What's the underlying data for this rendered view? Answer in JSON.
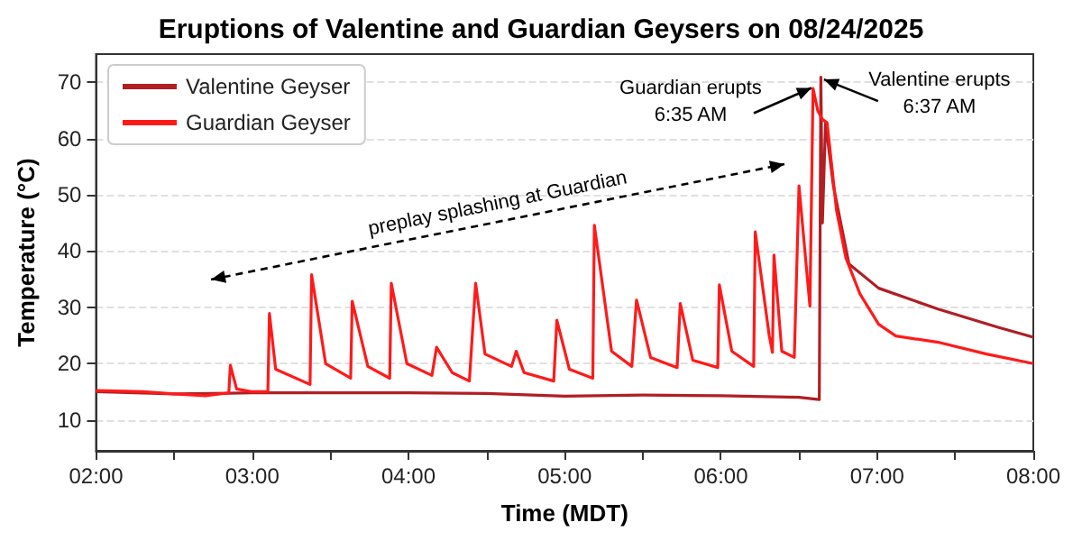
{
  "chart_data": {
    "type": "line",
    "title": "Eruptions of Valentine and Guardian Geysers on 08/24/2025",
    "xlabel": "Time (MDT)",
    "ylabel": "Temperature (°C)",
    "xlim": [
      2,
      8
    ],
    "xticks": [
      {
        "value": 2,
        "label": "02:00"
      },
      {
        "value": 2.5,
        "label": null
      },
      {
        "value": 3,
        "label": "03:00"
      },
      {
        "value": 3.5,
        "label": null
      },
      {
        "value": 4,
        "label": "04:00"
      },
      {
        "value": 4.5,
        "label": null
      },
      {
        "value": 5,
        "label": "05:00"
      },
      {
        "value": 5.5,
        "label": null
      },
      {
        "value": 6,
        "label": "06:00"
      },
      {
        "value": 6.5,
        "label": null
      },
      {
        "value": 7,
        "label": "07:00"
      },
      {
        "value": 7.5,
        "label": null
      },
      {
        "value": 8,
        "label": "08:00"
      }
    ],
    "ylim": [
      4.5,
      75
    ],
    "yticks": [
      10,
      20,
      30,
      40,
      50,
      60,
      70
    ],
    "series": [
      {
        "name": "Valentine Geyser",
        "color": "#b01f24",
        "x": [
          2.0,
          2.5,
          3.0,
          4.0,
          4.5,
          5.0,
          5.5,
          6.0,
          6.5,
          6.63,
          6.64,
          6.65,
          6.67,
          6.72,
          6.82,
          7.01,
          7.39,
          7.77,
          8.0
        ],
        "values": [
          15.0,
          14.6,
          14.8,
          14.8,
          14.7,
          14.2,
          14.4,
          14.3,
          14.0,
          13.6,
          70.9,
          45.0,
          62.8,
          51.6,
          37.7,
          33.4,
          29.7,
          26.5,
          24.7
        ]
      },
      {
        "name": "Guardian Geyser",
        "color": "#ff1a1a",
        "x": [
          2.0,
          2.3,
          2.5,
          2.7,
          2.85,
          2.86,
          2.9,
          3.0,
          3.1,
          3.11,
          3.15,
          3.37,
          3.38,
          3.47,
          3.63,
          3.64,
          3.74,
          3.88,
          3.89,
          3.99,
          4.15,
          4.18,
          4.28,
          4.39,
          4.43,
          4.49,
          4.66,
          4.69,
          4.74,
          4.93,
          4.95,
          5.03,
          5.18,
          5.19,
          5.3,
          5.43,
          5.46,
          5.55,
          5.72,
          5.74,
          5.82,
          5.98,
          5.99,
          6.07,
          6.21,
          6.22,
          6.31,
          6.33,
          6.34,
          6.39,
          6.47,
          6.5,
          6.57,
          6.59,
          6.62,
          6.65,
          6.68,
          6.74,
          6.8,
          6.89,
          7.01,
          7.12,
          7.39,
          7.7,
          8.0
        ],
        "values": [
          15.2,
          15.0,
          14.6,
          14.3,
          14.8,
          19.7,
          15.5,
          15.0,
          15.0,
          28.9,
          19.0,
          16.3,
          35.8,
          20.0,
          17.4,
          31.1,
          19.5,
          17.4,
          34.3,
          20.0,
          17.9,
          22.9,
          18.4,
          16.9,
          34.3,
          21.7,
          19.5,
          22.2,
          18.4,
          16.9,
          27.7,
          19.0,
          17.4,
          44.6,
          22.2,
          19.5,
          31.3,
          21.1,
          19.3,
          30.7,
          20.6,
          19.3,
          34.0,
          22.2,
          19.5,
          43.4,
          24.9,
          22.0,
          39.3,
          22.2,
          21.1,
          51.6,
          30.2,
          68.9,
          65.0,
          63.4,
          62.8,
          47.3,
          38.8,
          32.4,
          27.0,
          24.9,
          23.8,
          21.7,
          20.0
        ]
      }
    ],
    "annotations": [
      "preplay splashing at Guardian",
      {
        "text": "Guardian erupts\n6:35 AM",
        "x": 6.58,
        "y": 69
      },
      {
        "text": "Valentine erupts\n6:37 AM",
        "x": 6.66,
        "y": 70.5
      }
    ],
    "grid": "y",
    "legend": "top left",
    "marker": "none",
    "line_style": "solid"
  }
}
